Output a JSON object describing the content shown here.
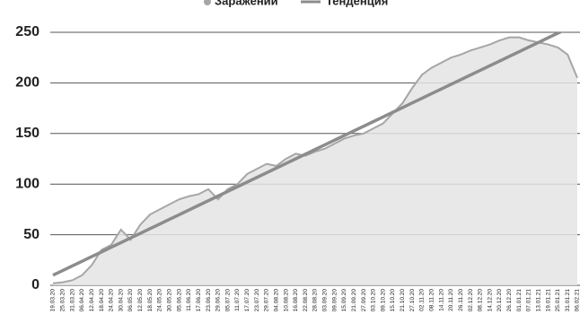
{
  "chart_data": {
    "type": "area",
    "categories": [
      "19.03.20",
      "25.03.20",
      "31.03.20",
      "06.04.20",
      "12.04.20",
      "18.04.20",
      "24.04.20",
      "30.04.20",
      "06.05.20",
      "12.05.20",
      "18.05.20",
      "24.05.20",
      "30.05.20",
      "05.06.20",
      "11.06.20",
      "17.06.20",
      "23.06.20",
      "29.06.20",
      "05.07.20",
      "11.07.20",
      "17.07.20",
      "23.07.20",
      "29.07.20",
      "04.08.20",
      "10.08.20",
      "16.08.20",
      "22.08.20",
      "28.08.20",
      "03.09.20",
      "09.09.20",
      "15.09.20",
      "21.09.20",
      "27.09.20",
      "03.10.20",
      "09.10.20",
      "15.10.20",
      "21.10.20",
      "27.10.20",
      "02.11.20",
      "08.11.20",
      "14.11.20",
      "20.11.20",
      "26.11.20",
      "02.12.20",
      "08.12.20",
      "14.12.20",
      "20.12.20",
      "26.12.20",
      "01.01.21",
      "07.01.21",
      "13.01.21",
      "19.01.21",
      "25.01.21",
      "31.01.21",
      "06.02.21"
    ],
    "series": [
      {
        "name": "Заражении",
        "color": "#a6a6a6",
        "fill": "#e4e4e4",
        "values": [
          2,
          3,
          5,
          10,
          20,
          35,
          40,
          55,
          45,
          60,
          70,
          75,
          80,
          85,
          88,
          90,
          95,
          85,
          95,
          100,
          110,
          115,
          120,
          118,
          125,
          130,
          128,
          132,
          135,
          140,
          145,
          148,
          150,
          155,
          160,
          170,
          180,
          195,
          208,
          215,
          220,
          225,
          228,
          232,
          235,
          238,
          242,
          245,
          245,
          242,
          240,
          238,
          235,
          228,
          205
        ]
      },
      {
        "name": "Тенденция",
        "color": "#8c8c8c",
        "kind": "trend",
        "values": [
          10,
          14.6,
          19.2,
          23.8,
          28.4,
          33,
          37.6,
          42.2,
          46.8,
          51.4,
          56,
          60.6,
          65.2,
          69.8,
          74.4,
          79,
          83.6,
          88.2,
          92.8,
          97.4,
          102,
          106.6,
          111.2,
          115.8,
          120.4,
          125,
          129.6,
          134.2,
          138.8,
          143.4,
          148,
          152.6,
          157.2,
          161.8,
          166.4,
          171,
          175.6,
          180.2,
          184.8,
          189.4,
          194,
          198.6,
          203.2,
          207.8,
          212.4,
          217,
          221.6,
          226.2,
          230.8,
          235.4,
          240,
          244.6,
          249.2,
          253.8,
          258.4
        ]
      }
    ],
    "ylim": [
      0,
      250
    ],
    "yticks": [
      0,
      50,
      100,
      150,
      200,
      250
    ],
    "grid": true
  }
}
